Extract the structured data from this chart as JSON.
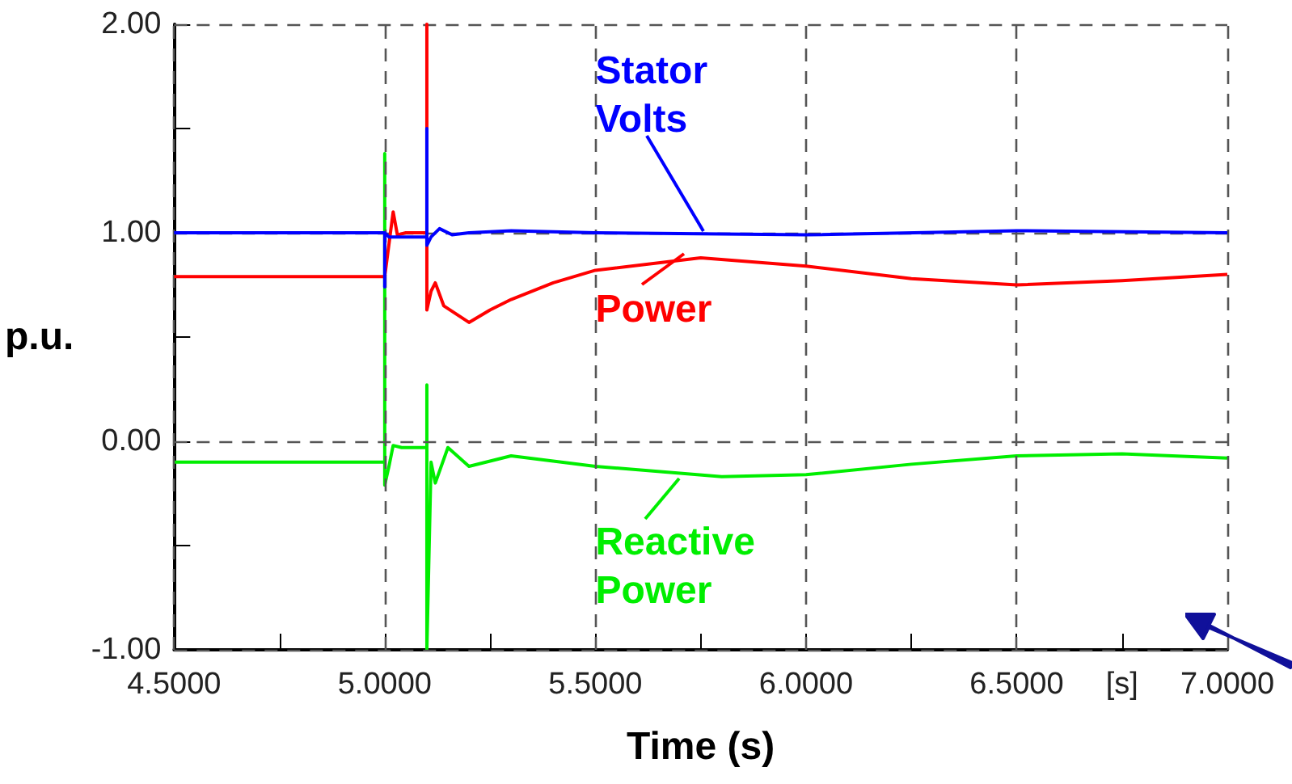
{
  "chart_data": {
    "type": "line",
    "xlabel": "Time (s)",
    "ylabel": "p.u.",
    "xlim": [
      4.5,
      7.0
    ],
    "xticks": [
      {
        "value": 4.5,
        "label": "4.5000"
      },
      {
        "value": 4.75,
        "label": null
      },
      {
        "value": 5.0,
        "label": "5.0000"
      },
      {
        "value": 5.25,
        "label": null
      },
      {
        "value": 5.5,
        "label": "5.5000"
      },
      {
        "value": 5.75,
        "label": null
      },
      {
        "value": 6.0,
        "label": "6.0000"
      },
      {
        "value": 6.25,
        "label": null
      },
      {
        "value": 6.5,
        "label": "6.5000"
      },
      {
        "value": 6.75,
        "label": "[s]"
      },
      {
        "value": 7.0,
        "label": "7.0000"
      }
    ],
    "ylim": [
      -1,
      2
    ],
    "yticks": [
      {
        "value": -1,
        "label": "-1.00"
      },
      {
        "value": -0.5,
        "label": null
      },
      {
        "value": 0,
        "label": "0.00"
      },
      {
        "value": 0.5,
        "label": null
      },
      {
        "value": 1,
        "label": "1.00"
      },
      {
        "value": 1.5,
        "label": null
      },
      {
        "value": 2,
        "label": "2.00"
      }
    ],
    "grid": true,
    "legend": "center",
    "marker": "none",
    "line_style": "solid",
    "series": [
      {
        "name": "Stator Volts",
        "color": "#0000ff",
        "x": [
          4.5,
          5.0,
          5.0,
          5.0,
          5.01,
          5.03,
          5.1,
          5.1,
          5.1,
          5.11,
          5.13,
          5.16,
          5.2,
          5.3,
          5.5,
          6.0,
          6.5,
          7.0
        ],
        "values": [
          1.0,
          1.0,
          0.74,
          1.0,
          0.98,
          0.98,
          0.98,
          1.5,
          0.94,
          0.98,
          1.02,
          0.99,
          1.0,
          1.01,
          1.0,
          0.99,
          1.01,
          1.0
        ]
      },
      {
        "name": "Power",
        "color": "#ff0000",
        "x": [
          4.5,
          5.0,
          5.0,
          5.02,
          5.03,
          5.05,
          5.1,
          5.1,
          5.1,
          5.11,
          5.12,
          5.14,
          5.2,
          5.25,
          5.3,
          5.4,
          5.5,
          5.75,
          6.0,
          6.25,
          6.5,
          6.75,
          7.0
        ],
        "values": [
          0.79,
          0.79,
          0.79,
          1.1,
          0.99,
          1.0,
          1.0,
          2.0,
          0.63,
          0.72,
          0.76,
          0.65,
          0.57,
          0.63,
          0.68,
          0.76,
          0.82,
          0.88,
          0.84,
          0.78,
          0.75,
          0.77,
          0.8
        ]
      },
      {
        "name": "Reactive Power",
        "color": "#00ee00",
        "x": [
          4.5,
          5.0,
          5.0,
          5.0,
          5.01,
          5.02,
          5.04,
          5.1,
          5.1,
          5.1,
          5.11,
          5.12,
          5.15,
          5.2,
          5.3,
          5.5,
          5.8,
          6.0,
          6.25,
          6.5,
          6.75,
          7.0
        ],
        "values": [
          -0.1,
          -0.1,
          1.38,
          -0.21,
          -0.12,
          -0.02,
          -0.03,
          -0.03,
          0.27,
          -1.0,
          -0.1,
          -0.2,
          -0.03,
          -0.12,
          -0.07,
          -0.12,
          -0.17,
          -0.16,
          -0.11,
          -0.07,
          -0.06,
          -0.08
        ]
      }
    ]
  }
}
